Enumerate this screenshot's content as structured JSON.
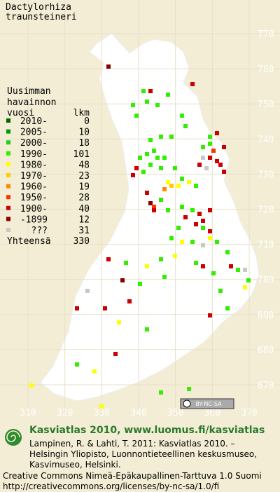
{
  "map": {
    "title_lines": [
      "Dactylorhiza",
      "traunsteineri"
    ],
    "yticks": [
      770,
      760,
      750,
      740,
      730,
      720,
      710,
      700,
      690,
      680,
      670
    ],
    "xticks": [
      310,
      320,
      330,
      340,
      350,
      360,
      370
    ],
    "legend": {
      "header_lines": [
        "Uusimman",
        "havainnon"
      ],
      "col_year": "vuosi",
      "col_count": "lkm",
      "rows": [
        {
          "label": "2010-",
          "count": 0,
          "color": "#006400"
        },
        {
          "label": "2005-",
          "count": 10,
          "color": "#009900"
        },
        {
          "label": "2000-",
          "count": 18,
          "color": "#22cc22"
        },
        {
          "label": "1990-",
          "count": 101,
          "color": "#33ee00"
        },
        {
          "label": "1980-",
          "count": 48,
          "color": "#ffff00"
        },
        {
          "label": "1970-",
          "count": 23,
          "color": "#ffcc00"
        },
        {
          "label": "1960-",
          "count": 19,
          "color": "#ff8800"
        },
        {
          "label": "1950-",
          "count": 28,
          "color": "#ff3300"
        },
        {
          "label": "1900-",
          "count": 40,
          "color": "#cc0000"
        },
        {
          "label": "-1899",
          "count": 12,
          "color": "#880000"
        },
        {
          "label": "???",
          "count": 31,
          "color": "#c8c8c8"
        }
      ],
      "total_label": "Yhteensä",
      "total": 330
    },
    "license_badge": "BY-NC-SA"
  },
  "footer": {
    "heading": "Kasviatlas 2010, www.luomus.fi/kasviatlas",
    "citation_lines": [
      "Lampinen, R. & Lahti, T. 2011: Kasviatlas 2010. –",
      "Helsingin Yliopisto, Luonnontieteellinen keskusmuseo,",
      "Kasvimuseo, Helsinki."
    ],
    "license_lines": [
      "Creative Commons Nimeä-Epäkaupallinen-Tarttuva 1.0 Suomi",
      "http://creativecommons.org/licenses/by-nc-sa/1.0/fi"
    ]
  }
}
